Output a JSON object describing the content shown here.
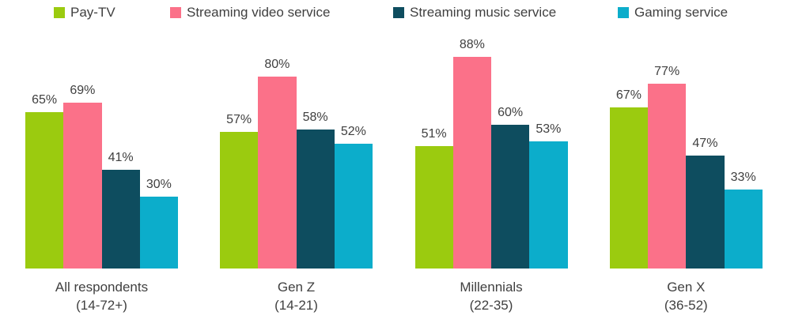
{
  "chart_data": {
    "type": "bar",
    "unit": "%",
    "grid": false,
    "legend_position": "top",
    "value_labels": true,
    "ylim": [
      0,
      100
    ],
    "text_color": "#404040",
    "series": [
      {
        "name": "Pay-TV",
        "color": "#9bcb0f"
      },
      {
        "name": "Streaming video service",
        "color": "#fb7189"
      },
      {
        "name": "Streaming music service",
        "color": "#0e4d5f"
      },
      {
        "name": "Gaming service",
        "color": "#0cadcb"
      }
    ],
    "groups": [
      {
        "label": "All respondents",
        "sublabel": "(14-72+)",
        "values": [
          65,
          69,
          41,
          30
        ]
      },
      {
        "label": "Gen Z",
        "sublabel": "(14-21)",
        "values": [
          57,
          80,
          58,
          52
        ]
      },
      {
        "label": "Millennials",
        "sublabel": "(22-35)",
        "values": [
          51,
          88,
          60,
          53
        ]
      },
      {
        "label": "Gen X",
        "sublabel": "(36-52)",
        "values": [
          67,
          77,
          47,
          33
        ]
      }
    ]
  }
}
